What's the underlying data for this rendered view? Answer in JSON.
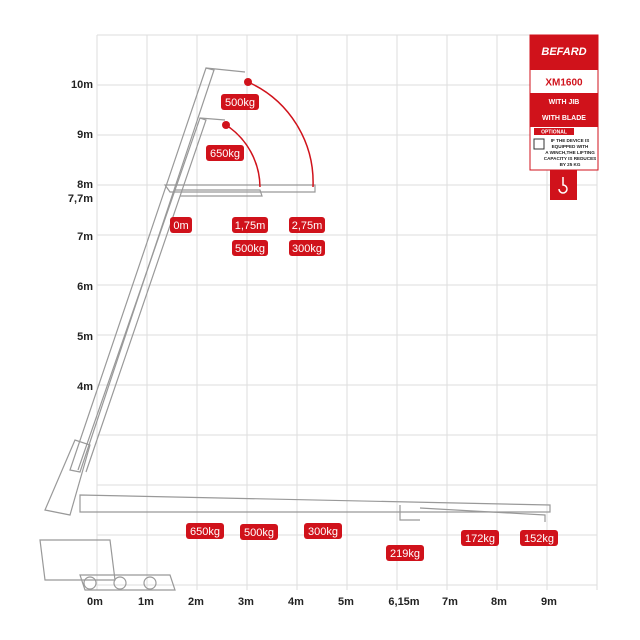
{
  "y_labels": [
    "10m",
    "9m",
    "8m",
    "7,7m",
    "7m",
    "6m",
    "5m",
    "4m"
  ],
  "x_labels": [
    "0m",
    "1m",
    "2m",
    "3m",
    "4m",
    "5m",
    "6,15m",
    "7m",
    "8m",
    "9m"
  ],
  "load_labels": [
    "500kg",
    "650kg",
    "0m",
    "1,75m",
    "2,75m",
    "500kg",
    "300kg",
    "650kg",
    "500kg",
    "300kg",
    "219kg",
    "172kg",
    "152kg"
  ],
  "panel": {
    "brand": "BEFARD",
    "model": "XM1600",
    "option_1": "WITH JIB",
    "option_2": "WITH BLADE",
    "optional_title": "OPTIONAL",
    "note": [
      "IF THE DEVICE IS",
      "EQUIPPED WITH",
      "A WINCH,THE LIFTING",
      "CAPACITY IS REDUCES",
      "BY 25 KG"
    ]
  }
}
